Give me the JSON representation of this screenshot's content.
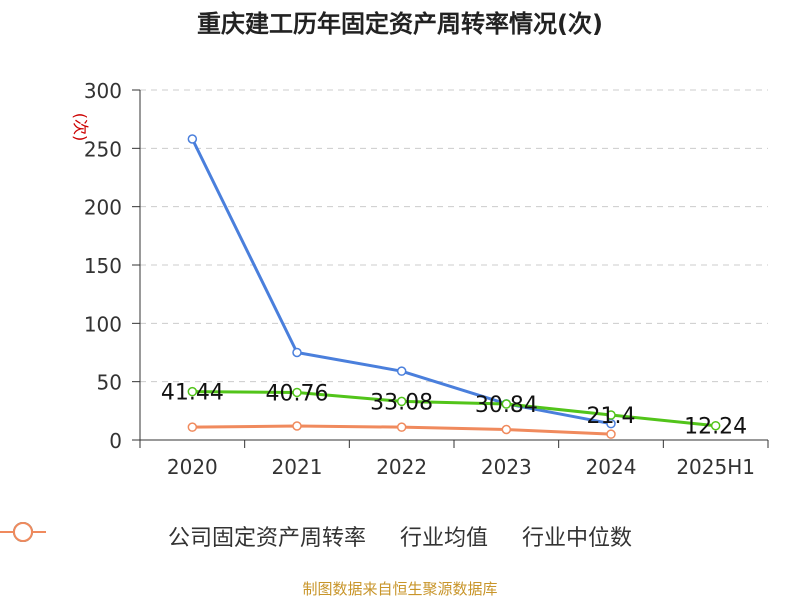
{
  "title": "重庆建工历年固定资产周转率情况(次)",
  "source": "制图数据来自恒生聚源数据库",
  "chart_data": {
    "type": "line",
    "categories": [
      "2020",
      "2021",
      "2022",
      "2023",
      "2024",
      "2025H1"
    ],
    "ylabel": "(次)",
    "ylim": [
      0,
      300
    ],
    "yticks": [
      0,
      50,
      100,
      150,
      200,
      250,
      300
    ],
    "grid": true,
    "legend_position": "bottom",
    "series": [
      {
        "name": "公司固定资产周转率",
        "color": "#52c41a",
        "values": [
          41.44,
          40.76,
          33.08,
          30.84,
          21.4,
          12.24
        ],
        "labels": [
          "41.44",
          "40.76",
          "33.08",
          "30.84",
          "21.4",
          "12.24"
        ]
      },
      {
        "name": "行业均值",
        "color": "#4a7fdc",
        "values": [
          258,
          75,
          59,
          31,
          14,
          null
        ]
      },
      {
        "name": "行业中位数",
        "color": "#f08a5d",
        "values": [
          11,
          12,
          11,
          9,
          5,
          null
        ]
      }
    ]
  }
}
